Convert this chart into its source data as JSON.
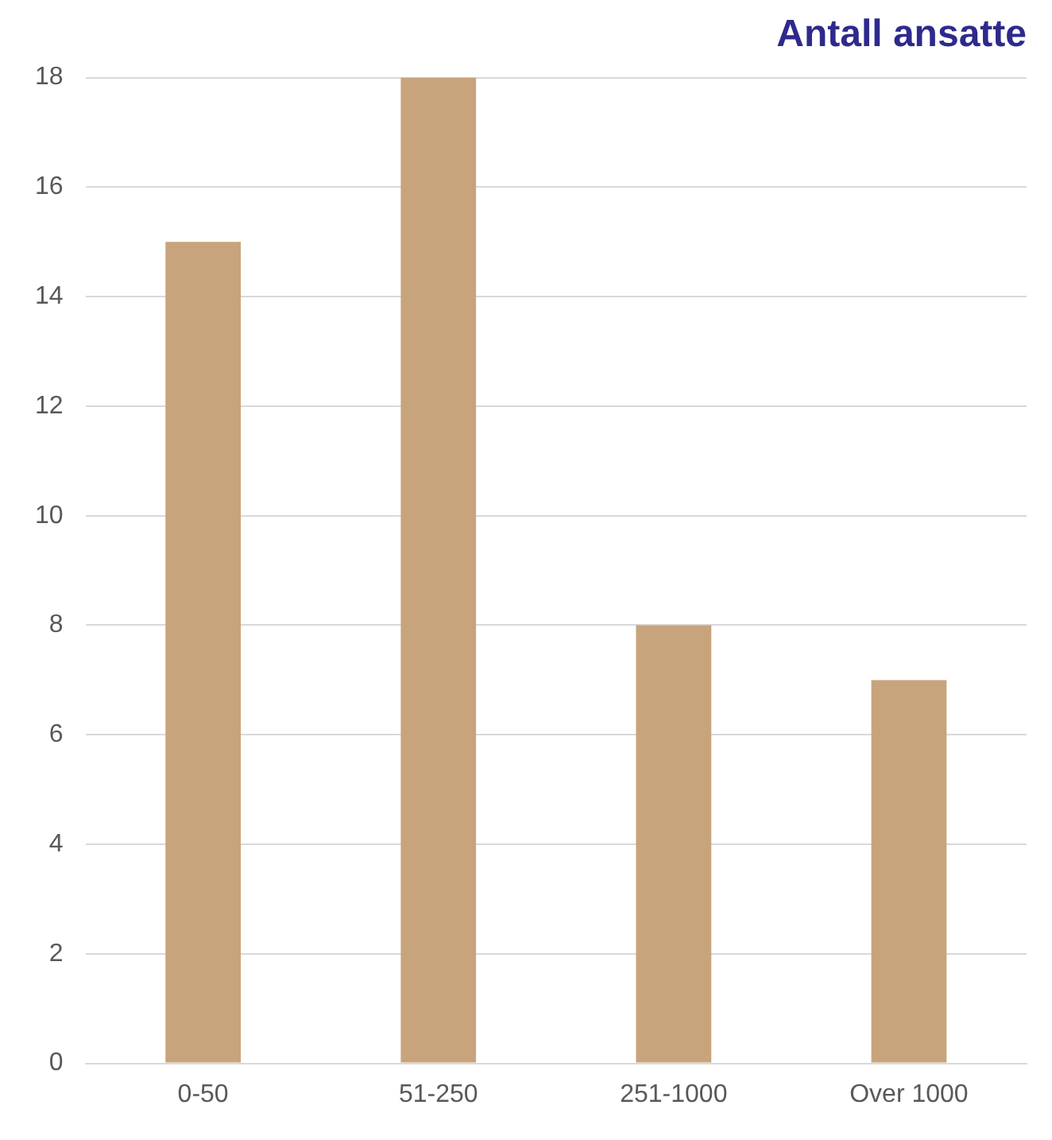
{
  "chart_data": {
    "type": "bar",
    "title": "Antall ansatte",
    "categories": [
      "0-50",
      "51-250",
      "251-1000",
      "Over 1000"
    ],
    "values": [
      15,
      18,
      8,
      7
    ],
    "color": "#c8a47c",
    "ylim": [
      0,
      18
    ],
    "yticks": [
      0,
      2,
      4,
      6,
      8,
      10,
      12,
      14,
      16,
      18
    ],
    "grid": "y",
    "legend": false
  }
}
